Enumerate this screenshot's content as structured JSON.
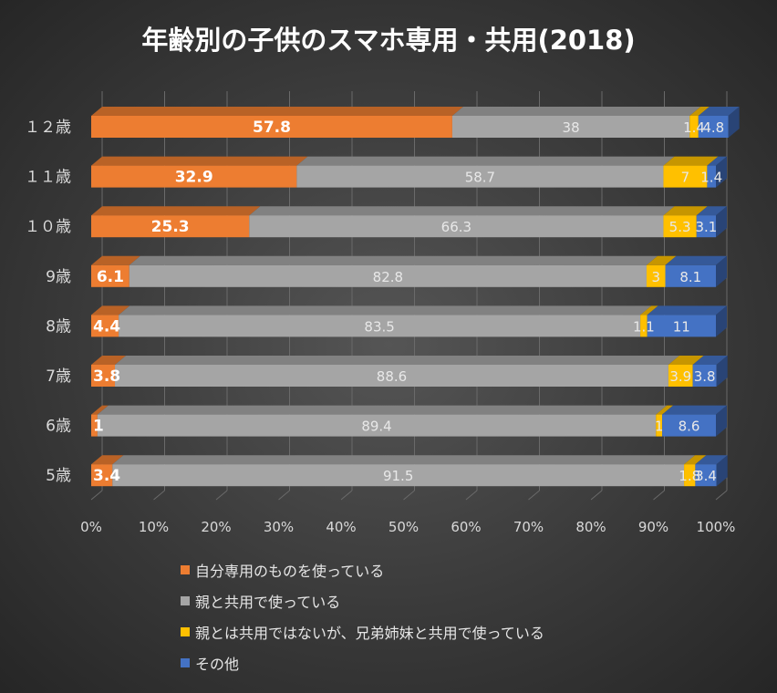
{
  "chart_data": {
    "type": "bar",
    "orientation": "horizontal",
    "stacked": "percent",
    "title": "年齢別の子供のスマホ専用・共用(2018)",
    "categories": [
      "１２歳",
      "１１歳",
      "１０歳",
      "9歳",
      "8歳",
      "7歳",
      "6歳",
      "5歳"
    ],
    "series": [
      {
        "name": "自分専用のものを使っている",
        "color": "#ed7d31",
        "label_color": "#ffffff",
        "label_bold": true,
        "values": [
          57.8,
          32.9,
          25.3,
          6.1,
          4.4,
          3.8,
          1,
          3.4
        ]
      },
      {
        "name": "親と共用で使っている",
        "color": "#a5a5a5",
        "label_color": "#e8e8e8",
        "label_bold": false,
        "values": [
          38,
          58.7,
          66.3,
          82.8,
          83.5,
          88.6,
          89.4,
          91.5
        ]
      },
      {
        "name": "親とは共用ではないが、兄弟姉妹と共用で使っている",
        "color": "#ffc000",
        "label_color": "#e8e8e8",
        "label_bold": false,
        "values": [
          1.4,
          7,
          5.3,
          3,
          1.1,
          3.9,
          1,
          1.8
        ]
      },
      {
        "name": "その他",
        "color": "#4472c4",
        "label_color": "#e8e8e8",
        "label_bold": false,
        "values": [
          4.8,
          1.4,
          3.1,
          8.1,
          11,
          3.8,
          8.6,
          3.4
        ]
      }
    ],
    "data_labels": [
      [
        "57.8",
        "32.9",
        "25.3",
        "6.1",
        "4.4",
        "3.8",
        "1",
        "3.4"
      ],
      [
        "38",
        "58.7",
        "66.3",
        "82.8",
        "83.5",
        "88.6",
        "89.4",
        "91.5"
      ],
      [
        "1.4",
        "7",
        "5.3",
        "3",
        "1.1",
        "3.9",
        "1",
        "1.8"
      ],
      [
        "4.8",
        "1.4",
        "3.1",
        "8.1",
        "11",
        "3.8",
        "8.6",
        "3.4"
      ]
    ],
    "x_ticks": [
      "0%",
      "10%",
      "20%",
      "30%",
      "40%",
      "50%",
      "60%",
      "70%",
      "80%",
      "90%",
      "100%"
    ],
    "xlim": [
      0,
      100
    ],
    "grid": true,
    "legend_position": "bottom",
    "style": "3d-bar"
  }
}
